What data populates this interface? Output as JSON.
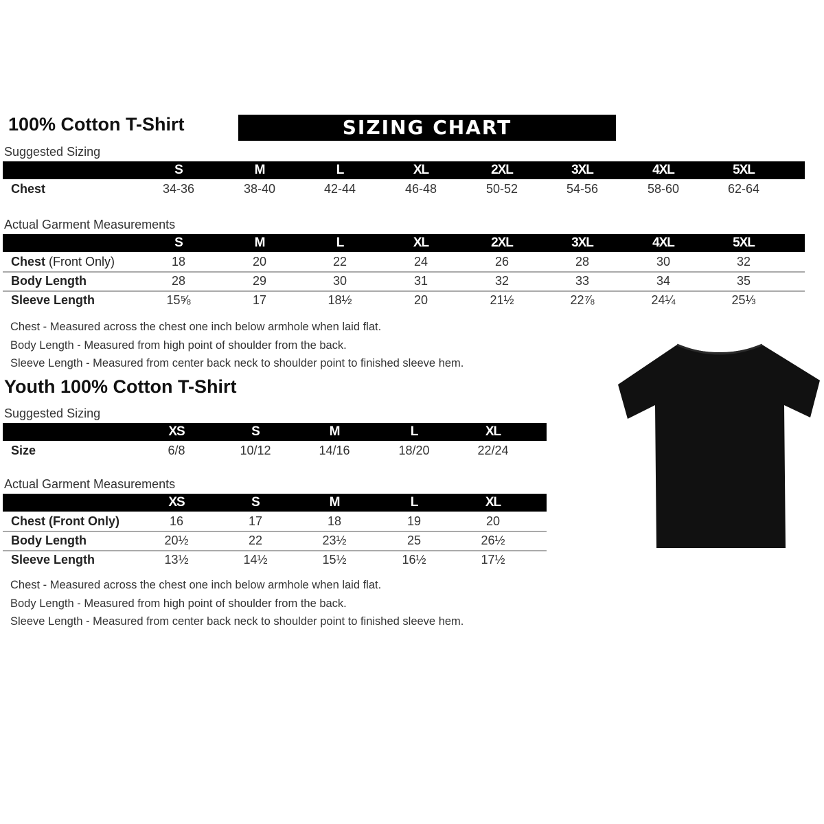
{
  "banner": "SIZING CHART",
  "adult": {
    "title": "100% Cotton T-Shirt",
    "suggested_label": "Suggested Sizing",
    "sizes": [
      "S",
      "M",
      "L",
      "XL",
      "2XL",
      "3XL",
      "4XL",
      "5XL"
    ],
    "suggested_rows": [
      {
        "label": "Chest",
        "values": [
          "34-36",
          "38-40",
          "42-44",
          "46-48",
          "50-52",
          "54-56",
          "58-60",
          "62-64"
        ]
      }
    ],
    "actual_label": "Actual Garment Measurements",
    "actual_rows": [
      {
        "label": "Chest",
        "label_suffix": " (Front Only)",
        "values": [
          "18",
          "20",
          "22",
          "24",
          "26",
          "28",
          "30",
          "32"
        ]
      },
      {
        "label": "Body Length",
        "label_suffix": "",
        "values": [
          "28",
          "29",
          "30",
          "31",
          "32",
          "33",
          "34",
          "35"
        ]
      },
      {
        "label": "Sleeve Length",
        "label_suffix": "",
        "values": [
          "15⅝",
          "17",
          "18½",
          "20",
          "21½",
          "22⅞",
          "24¼",
          "25⅓"
        ]
      }
    ],
    "notes": [
      "Chest - Measured across the chest one inch below armhole when laid flat.",
      "Body Length - Measured from high point of shoulder from the back.",
      "Sleeve Length - Measured from center back neck to shoulder point to finished sleeve hem."
    ]
  },
  "youth": {
    "title": "Youth 100% Cotton T-Shirt",
    "suggested_label": "Suggested Sizing",
    "sizes": [
      "XS",
      "S",
      "M",
      "L",
      "XL"
    ],
    "suggested_rows": [
      {
        "label": "Size",
        "values": [
          "6/8",
          "10/12",
          "14/16",
          "18/20",
          "22/24"
        ]
      }
    ],
    "actual_label": "Actual Garment Measurements",
    "actual_rows": [
      {
        "label": "Chest (Front Only)",
        "label_suffix": "",
        "values": [
          "16",
          "17",
          "18",
          "19",
          "20"
        ]
      },
      {
        "label": "Body Length",
        "label_suffix": "",
        "values": [
          "20½",
          "22",
          "23½",
          "25",
          "26½"
        ]
      },
      {
        "label": "Sleeve Length",
        "label_suffix": "",
        "values": [
          "13½",
          "14½",
          "15½",
          "16½",
          "17½"
        ]
      }
    ],
    "notes": [
      "Chest - Measured across the chest one inch below armhole when laid flat.",
      "Body Length - Measured from high point of shoulder from the back.",
      "Sleeve Length - Measured from center back neck to shoulder point to finished sleeve hem."
    ]
  },
  "tshirt_icon": "tshirt-icon",
  "tshirt_color": "#111111"
}
